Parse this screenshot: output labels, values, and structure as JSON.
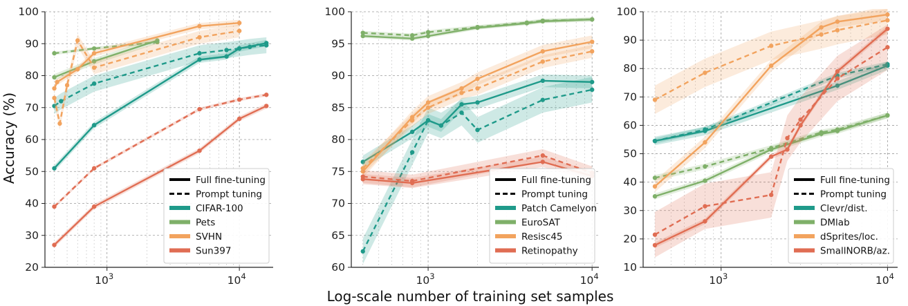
{
  "figure": {
    "ylabel": "Accuracy (%)",
    "xlabel": "Log-scale number of training set samples",
    "colors": {
      "teal": "#1f9a8a",
      "green": "#7fb069",
      "orange": "#f2a35e",
      "red": "#e06d53"
    }
  },
  "chart_data": [
    {
      "type": "line",
      "xscale": "log",
      "xlim": [
        340,
        18000
      ],
      "ylim": [
        20,
        100
      ],
      "yticks": [
        20,
        30,
        40,
        50,
        60,
        70,
        80,
        90,
        100
      ],
      "xticks": [
        {
          "v": 1000,
          "b": "10",
          "e": "3"
        },
        {
          "v": 10000,
          "b": "10",
          "e": "4"
        }
      ],
      "ylabel": "Accuracy (%)",
      "legend_position": "bottom-right",
      "legend_styles": [
        "Full fine-tuning",
        "Prompt tuning"
      ],
      "series": [
        {
          "name": "CIFAR-100",
          "color": "#1f9a8a",
          "style": "full",
          "x": [
            400,
            800,
            5000,
            8000,
            10000,
            16000
          ],
          "y": [
            51,
            64.5,
            85,
            86,
            88.5,
            90.2
          ],
          "band": 1.0
        },
        {
          "name": "CIFAR-100",
          "color": "#1f9a8a",
          "style": "prompt",
          "x": [
            400,
            450,
            800,
            5000,
            8000,
            10000,
            12000,
            16000
          ],
          "y": [
            70.5,
            72,
            77.5,
            87,
            88,
            88.5,
            89,
            89.5
          ],
          "band": 2.5
        },
        {
          "name": "Pets",
          "color": "#7fb069",
          "style": "full",
          "x": [
            400,
            800,
            2400
          ],
          "y": [
            79.5,
            84.5,
            91
          ],
          "band": 1.0
        },
        {
          "name": "Pets",
          "color": "#7fb069",
          "style": "prompt",
          "x": [
            400,
            800,
            2400
          ],
          "y": [
            87,
            88.5,
            90.5
          ],
          "band": 0.5
        },
        {
          "name": "SVHN",
          "color": "#f2a35e",
          "style": "full",
          "x": [
            400,
            420,
            600,
            800,
            5000,
            10000
          ],
          "y": [
            76,
            78,
            82,
            87,
            95.5,
            96.5
          ],
          "band": 1.0
        },
        {
          "name": "SVHN",
          "color": "#f2a35e",
          "style": "prompt",
          "x": [
            400,
            440,
            500,
            600,
            800,
            5000,
            10000
          ],
          "y": [
            73,
            65,
            77,
            91,
            82.5,
            92,
            94
          ],
          "band": 2.0
        },
        {
          "name": "Sun397",
          "color": "#e06d53",
          "style": "full",
          "x": [
            400,
            800,
            5000,
            10000,
            16000
          ],
          "y": [
            27,
            39,
            56.5,
            66.5,
            70.5
          ],
          "band": 0.8
        },
        {
          "name": "Sun397",
          "color": "#e06d53",
          "style": "prompt",
          "x": [
            400,
            800,
            5000,
            10000,
            16000
          ],
          "y": [
            39,
            51,
            69.5,
            72.5,
            74
          ],
          "band": 0.5
        }
      ]
    },
    {
      "type": "line",
      "xscale": "log",
      "xlim": [
        340,
        11000
      ],
      "ylim": [
        60,
        100
      ],
      "yticks": [
        60,
        65,
        70,
        75,
        80,
        85,
        90,
        95,
        100
      ],
      "xticks": [
        {
          "v": 1000,
          "b": "10",
          "e": "3"
        },
        {
          "v": 10000,
          "b": "10",
          "e": "4"
        }
      ],
      "xlabel": "Log-scale number of training set samples",
      "legend_position": "bottom-right",
      "legend_styles": [
        "Full fine-tuning",
        "Prompt tuning"
      ],
      "series": [
        {
          "name": "Patch Camelyon",
          "color": "#1f9a8a",
          "style": "full",
          "x": [
            400,
            800,
            1000,
            1200,
            1600,
            2000,
            5000,
            10000
          ],
          "y": [
            76.5,
            81.2,
            83,
            82.2,
            85.5,
            85.8,
            89.2,
            89
          ],
          "band": 1.0
        },
        {
          "name": "Patch Camelyon",
          "color": "#1f9a8a",
          "style": "prompt",
          "x": [
            400,
            800,
            1000,
            1200,
            1600,
            2000,
            5000,
            10000
          ],
          "y": [
            62.5,
            78,
            83,
            82.2,
            84.2,
            81.5,
            86.2,
            87.8
          ],
          "band": 2.0
        },
        {
          "name": "EuroSAT",
          "color": "#7fb069",
          "style": "full",
          "x": [
            400,
            800,
            1000,
            2000,
            4000,
            5000,
            10000
          ],
          "y": [
            96.2,
            95.8,
            96.2,
            97.5,
            98.2,
            98.5,
            98.8
          ],
          "band": 0.3
        },
        {
          "name": "EuroSAT",
          "color": "#7fb069",
          "style": "prompt",
          "x": [
            400,
            800,
            1000,
            2000,
            4000,
            5000,
            10000
          ],
          "y": [
            96.7,
            96.3,
            96.8,
            97.6,
            98.3,
            98.6,
            98.8
          ],
          "band": 0.3
        },
        {
          "name": "Resisc45",
          "color": "#f2a35e",
          "style": "full",
          "x": [
            400,
            800,
            1000,
            1600,
            2000,
            5000,
            10000
          ],
          "y": [
            75,
            83.5,
            85.8,
            88,
            89.5,
            93.8,
            95.3
          ],
          "band": 1.0
        },
        {
          "name": "Resisc45",
          "color": "#f2a35e",
          "style": "prompt",
          "x": [
            400,
            800,
            1000,
            1600,
            2000,
            5000,
            10000
          ],
          "y": [
            75.5,
            83,
            85,
            87.3,
            88,
            92.2,
            93.8
          ],
          "band": 1.0
        },
        {
          "name": "Retinopathy",
          "color": "#e06d53",
          "style": "full",
          "x": [
            400,
            800,
            5000,
            10000
          ],
          "y": [
            73.8,
            73.2,
            76.5,
            74.3
          ],
          "band": 0.8
        },
        {
          "name": "Retinopathy",
          "color": "#e06d53",
          "style": "prompt",
          "x": [
            400,
            800,
            5000,
            10000
          ],
          "y": [
            74.2,
            73.5,
            77.5,
            74.8
          ],
          "band": 1.0
        }
      ]
    },
    {
      "type": "line",
      "xscale": "log",
      "xlim": [
        340,
        11500
      ],
      "ylim": [
        10,
        100
      ],
      "yticks": [
        10,
        20,
        30,
        40,
        50,
        60,
        70,
        80,
        90,
        100
      ],
      "xticks": [
        {
          "v": 1000,
          "b": "10",
          "e": "3"
        },
        {
          "v": 10000,
          "b": "10",
          "e": "4"
        }
      ],
      "legend_position": "bottom-right",
      "legend_styles": [
        "Full fine-tuning",
        "Prompt tuning"
      ],
      "series": [
        {
          "name": "Clevr/dist.",
          "color": "#1f9a8a",
          "style": "full",
          "x": [
            400,
            800,
            5000,
            10000
          ],
          "y": [
            54.5,
            58,
            74,
            81
          ],
          "band": 1.5
        },
        {
          "name": "Clevr/dist.",
          "color": "#1f9a8a",
          "style": "prompt",
          "x": [
            400,
            800,
            5000,
            10000
          ],
          "y": [
            54.5,
            58.5,
            77.5,
            81.5
          ],
          "band": 1.0
        },
        {
          "name": "DMlab",
          "color": "#7fb069",
          "style": "full",
          "x": [
            400,
            800,
            2000,
            4000,
            5000,
            10000
          ],
          "y": [
            35,
            40.5,
            51.5,
            57,
            58,
            63.5
          ],
          "band": 1.0
        },
        {
          "name": "DMlab",
          "color": "#7fb069",
          "style": "prompt",
          "x": [
            400,
            800,
            2000,
            4000,
            5000,
            10000
          ],
          "y": [
            41.5,
            45.5,
            52,
            57.5,
            58.5,
            63.5
          ],
          "band": 1.0
        },
        {
          "name": "dSprites/loc.",
          "color": "#f2a35e",
          "style": "full",
          "x": [
            400,
            800,
            2000,
            4000,
            5000,
            10000
          ],
          "y": [
            38.5,
            54,
            81,
            94.5,
            96.5,
            99
          ],
          "band": 2.0
        },
        {
          "name": "dSprites/loc.",
          "color": "#f2a35e",
          "style": "prompt",
          "x": [
            400,
            800,
            2000,
            4000,
            5000,
            10000
          ],
          "y": [
            69,
            78.5,
            88,
            92,
            93.5,
            97
          ],
          "band": 5.0
        },
        {
          "name": "SmallNORB/az.",
          "color": "#e06d53",
          "style": "full",
          "x": [
            400,
            800,
            2000,
            2500,
            3000,
            5000,
            10000
          ],
          "y": [
            17.8,
            26.2,
            49,
            51.5,
            60,
            79,
            94
          ],
          "band": 1.0
        },
        {
          "name": "SmallNORB/az.",
          "color": "#e06d53",
          "style": "prompt",
          "x": [
            400,
            800,
            2000,
            2500,
            3000,
            5000,
            10000
          ],
          "y": [
            21.5,
            31.5,
            35.5,
            55.5,
            62,
            76.5,
            87.5
          ],
          "band": 8.0
        }
      ]
    }
  ]
}
